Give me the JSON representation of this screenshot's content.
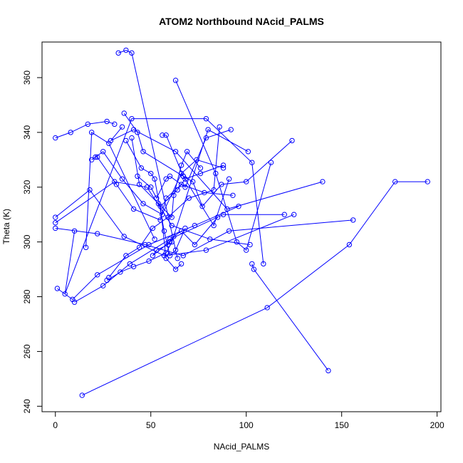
{
  "chart_data": {
    "type": "line",
    "title": "ATOM2 Northbound NAcid_PALMS",
    "xlabel": "NAcid_PALMS",
    "ylabel": "Theta (K)",
    "xlim": [
      -7,
      202
    ],
    "ylim": [
      238,
      373
    ],
    "xticks": [
      0,
      50,
      100,
      150,
      200
    ],
    "yticks": [
      240,
      260,
      280,
      300,
      320,
      340,
      360
    ],
    "color": "#0000ff",
    "markers": "open-circle",
    "grid": false,
    "legend": "none",
    "series": [
      {
        "x": [
          14,
          111,
          154,
          178,
          195
        ],
        "y": [
          244,
          276,
          299,
          322,
          322
        ]
      },
      {
        "x": [
          143,
          104,
          103
        ],
        "y": [
          253,
          290,
          292
        ]
      },
      {
        "x": [
          33,
          37,
          40,
          64
        ],
        "y": [
          369,
          370,
          369,
          294
        ]
      },
      {
        "x": [
          63,
          84,
          95,
          100,
          113
        ],
        "y": [
          359,
          325,
          300,
          297,
          329
        ]
      },
      {
        "x": [
          0,
          8,
          17,
          27,
          31
        ],
        "y": [
          338,
          340,
          343,
          344,
          343
        ]
      },
      {
        "x": [
          16,
          19,
          28,
          52
        ],
        "y": [
          298,
          340,
          336,
          301
        ]
      },
      {
        "x": [
          10,
          5,
          40,
          79,
          103,
          109
        ],
        "y": [
          304,
          281,
          345,
          345,
          329,
          292
        ]
      },
      {
        "x": [
          35,
          29,
          41,
          63,
          90,
          140
        ],
        "y": [
          342,
          337,
          341,
          333,
          312,
          322
        ]
      },
      {
        "x": [
          36,
          43,
          46,
          67,
          83,
          91
        ],
        "y": [
          347,
          340,
          333,
          324,
          306,
          323
        ]
      },
      {
        "x": [
          1,
          9,
          22,
          49,
          73,
          96
        ],
        "y": [
          283,
          279,
          288,
          299,
          306,
          313
        ]
      },
      {
        "x": [
          10,
          25,
          39,
          60,
          88,
          120
        ],
        "y": [
          278,
          284,
          292,
          301,
          310,
          310
        ]
      },
      {
        "x": [
          0,
          22,
          47,
          67,
          91,
          156
        ],
        "y": [
          305,
          303,
          299,
          295,
          304,
          308
        ]
      },
      {
        "x": [
          0,
          18,
          36,
          57,
          79,
          125
        ],
        "y": [
          309,
          319,
          302,
          295,
          297,
          310
        ]
      },
      {
        "x": [
          0,
          31,
          48,
          61,
          81,
          102
        ],
        "y": [
          307,
          322,
          320,
          306,
          301,
          299
        ]
      },
      {
        "x": [
          19,
          25,
          35,
          46,
          56,
          66,
          74,
          88
        ],
        "y": [
          330,
          333,
          323,
          314,
          310,
          325,
          330,
          327
        ]
      },
      {
        "x": [
          21,
          22,
          32,
          41,
          55,
          58,
          66,
          78,
          93
        ],
        "y": [
          331,
          331,
          321,
          312,
          308,
          316,
          321,
          318,
          317
        ]
      },
      {
        "x": [
          37,
          45,
          50,
          52,
          57,
          60,
          63,
          68
        ],
        "y": [
          337,
          327,
          325,
          323,
          304,
          295,
          297,
          305
        ]
      },
      {
        "x": [
          40,
          44,
          54,
          61,
          62,
          66,
          69,
          76
        ],
        "y": [
          338,
          321,
          314,
          309,
          317,
          328,
          333,
          327
        ]
      },
      {
        "x": [
          43,
          50,
          53,
          58,
          60,
          68,
          79,
          92
        ],
        "y": [
          324,
          320,
          316,
          323,
          324,
          320,
          338,
          341
        ]
      },
      {
        "x": [
          60,
          51,
          53,
          59,
          62,
          66,
          73,
          85
        ],
        "y": [
          300,
          295,
          297,
          299,
          302,
          304,
          299,
          309
        ]
      },
      {
        "x": [
          66,
          63,
          58,
          55,
          64,
          68,
          76,
          88
        ],
        "y": [
          292,
          290,
          294,
          313,
          319,
          323,
          325,
          328
        ]
      },
      {
        "x": [
          56,
          58,
          67,
          72,
          77,
          87,
          100,
          124
        ],
        "y": [
          339,
          339,
          324,
          322,
          313,
          321,
          322,
          337
        ]
      },
      {
        "x": [
          27,
          34,
          41,
          49,
          58,
          61,
          80,
          101
        ],
        "y": [
          286,
          289,
          291,
          293,
          296,
          300,
          341,
          333
        ]
      },
      {
        "x": [
          28,
          37,
          44,
          51,
          59,
          70,
          83,
          86
        ],
        "y": [
          287,
          295,
          298,
          305,
          309,
          316,
          319,
          342
        ]
      }
    ]
  }
}
